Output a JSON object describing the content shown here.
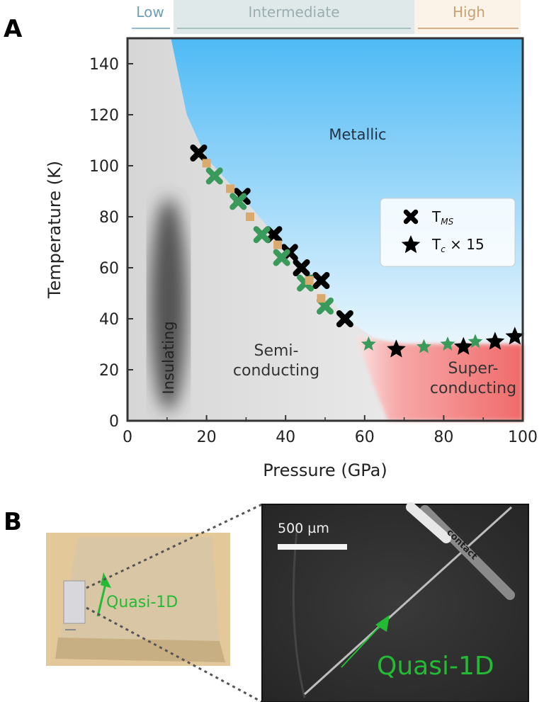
{
  "panel_labels": {
    "a": "A",
    "b": "B"
  },
  "pressure_regimes": [
    "Low",
    "Intermediate",
    "High"
  ],
  "chart_data": {
    "type": "scatter",
    "title": "",
    "xlabel": "Pressure (GPa)",
    "ylabel": "Temperature (K)",
    "xlim": [
      0,
      100
    ],
    "ylim": [
      0,
      150
    ],
    "xticks": [
      0,
      20,
      40,
      60,
      80,
      100
    ],
    "yticks": [
      0,
      20,
      40,
      60,
      80,
      100,
      120,
      140
    ],
    "grid": false,
    "legend_position": "right",
    "regions": [
      "Metallic",
      "Insulating",
      "Semi-\nconducting",
      "Super-\nconducting"
    ],
    "legend": [
      {
        "label": "T",
        "sub": "MS",
        "marker": "cross"
      },
      {
        "label": "T",
        "sub": "c",
        "suffix": " × 15",
        "marker": "star"
      }
    ],
    "series": [
      {
        "name": "T_MS run 1",
        "marker": "cross",
        "color": "#000000",
        "points": [
          [
            18,
            105
          ],
          [
            29,
            88
          ],
          [
            37,
            73
          ],
          [
            41,
            66
          ],
          [
            44,
            60
          ],
          [
            49,
            55
          ],
          [
            55,
            40
          ]
        ]
      },
      {
        "name": "T_MS run 2",
        "marker": "cross",
        "color": "#3a9a5b",
        "points": [
          [
            22,
            96
          ],
          [
            28,
            86
          ],
          [
            34,
            73
          ],
          [
            39,
            64
          ],
          [
            45,
            54
          ],
          [
            50,
            45
          ]
        ]
      },
      {
        "name": "T_MS run 3",
        "marker": "square",
        "color": "#d9aa6e",
        "points": [
          [
            20,
            101
          ],
          [
            26,
            91
          ],
          [
            31,
            80
          ],
          [
            38,
            69
          ],
          [
            46,
            55
          ],
          [
            49,
            48
          ]
        ]
      },
      {
        "name": "Tc x15 run 1",
        "marker": "star",
        "color": "#000000",
        "points": [
          [
            68,
            28
          ],
          [
            85,
            29
          ],
          [
            93,
            31
          ],
          [
            98,
            33
          ]
        ]
      },
      {
        "name": "Tc x15 run 2",
        "marker": "star",
        "color": "#3a9a5b",
        "points": [
          [
            61,
            30
          ],
          [
            75,
            29
          ],
          [
            81,
            30
          ],
          [
            88,
            31
          ]
        ]
      }
    ]
  },
  "panel_b": {
    "photo_label": "Quasi-1D",
    "sem_label": "Quasi-1D",
    "scale_bar": "500 µm",
    "tip_text": "contact"
  },
  "colors": {
    "metallic": "#5ec3f7",
    "superconducting": "#f07a7a",
    "green": "#22bb33"
  }
}
